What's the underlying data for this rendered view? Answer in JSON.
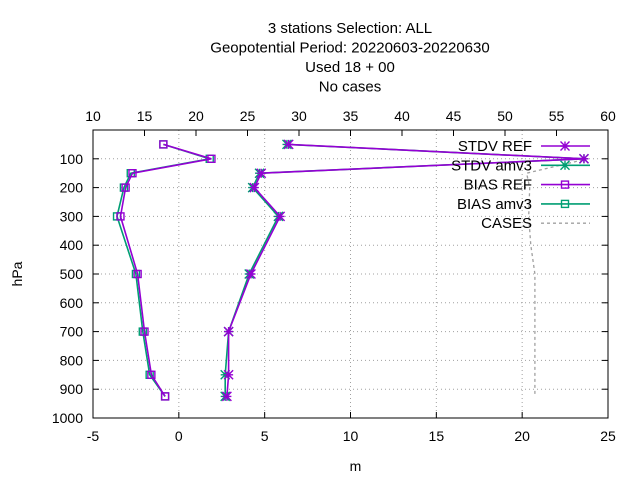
{
  "chart_data": {
    "type": "line",
    "title": [
      "3 stations Selection: ALL",
      "Geopotential  Period: 20220603-20220630",
      "Used  18  + 00",
      "No cases"
    ],
    "xlabel": "m",
    "ylabel": "hPa",
    "xlim": [
      -5,
      25
    ],
    "x2lim": [
      10,
      60
    ],
    "ylim": [
      1000,
      0
    ],
    "xticks": [
      "-5",
      "0",
      "5",
      "10",
      "15",
      "20",
      "25"
    ],
    "x2ticks": [
      "10",
      "15",
      "20",
      "25",
      "30",
      "35",
      "40",
      "45",
      "50",
      "55",
      "60"
    ],
    "yticks": [
      "100",
      "200",
      "300",
      "400",
      "500",
      "600",
      "700",
      "800",
      "900",
      "1000"
    ],
    "grid": true,
    "legend_position": "top-right",
    "colors": {
      "ref": "#9400d3",
      "amv3": "#009e73",
      "cases": "#a0a0a0"
    },
    "series": [
      {
        "name": "STDV REF",
        "axis": "x1",
        "marker": "star",
        "color": "#9400d3",
        "points": [
          [
            6.4,
            50
          ],
          [
            23.6,
            100
          ],
          [
            4.8,
            150
          ],
          [
            4.4,
            200
          ],
          [
            5.9,
            300
          ],
          [
            4.2,
            500
          ],
          [
            2.9,
            700
          ],
          [
            2.9,
            850
          ],
          [
            2.8,
            925
          ]
        ]
      },
      {
        "name": "STDV amv3",
        "axis": "x1",
        "marker": "star",
        "color": "#009e73",
        "points": [
          [
            6.3,
            50
          ],
          [
            23.6,
            100
          ],
          [
            4.7,
            150
          ],
          [
            4.3,
            200
          ],
          [
            5.8,
            300
          ],
          [
            4.1,
            500
          ],
          [
            2.9,
            700
          ],
          [
            2.7,
            850
          ],
          [
            2.7,
            925
          ]
        ]
      },
      {
        "name": "BIAS REF",
        "axis": "x1",
        "marker": "square",
        "color": "#9400d3",
        "points": [
          [
            -0.9,
            50
          ],
          [
            1.9,
            100
          ],
          [
            -2.7,
            150
          ],
          [
            -3.1,
            200
          ],
          [
            -3.4,
            300
          ],
          [
            -2.4,
            500
          ],
          [
            -2.0,
            700
          ],
          [
            -1.6,
            850
          ],
          [
            -0.8,
            925
          ]
        ]
      },
      {
        "name": "BIAS amv3",
        "axis": "x1",
        "marker": "square",
        "color": "#009e73",
        "points": [
          [
            -0.9,
            50
          ],
          [
            1.8,
            100
          ],
          [
            -2.8,
            150
          ],
          [
            -3.2,
            200
          ],
          [
            -3.6,
            300
          ],
          [
            -2.5,
            500
          ],
          [
            -2.1,
            700
          ],
          [
            -1.7,
            850
          ],
          [
            -0.8,
            925
          ]
        ]
      },
      {
        "name": "CASES",
        "axis": "x2",
        "marker": "none",
        "color": "#a0a0a0",
        "dashed": true,
        "points": [
          [
            28.8,
            50
          ],
          [
            58,
            100
          ],
          [
            52.1,
            150
          ],
          [
            52.4,
            200
          ],
          [
            52.3,
            300
          ],
          [
            52.5,
            400
          ],
          [
            52.9,
            500
          ],
          [
            52.9,
            700
          ],
          [
            52.9,
            850
          ],
          [
            52.9,
            925
          ]
        ]
      }
    ]
  }
}
